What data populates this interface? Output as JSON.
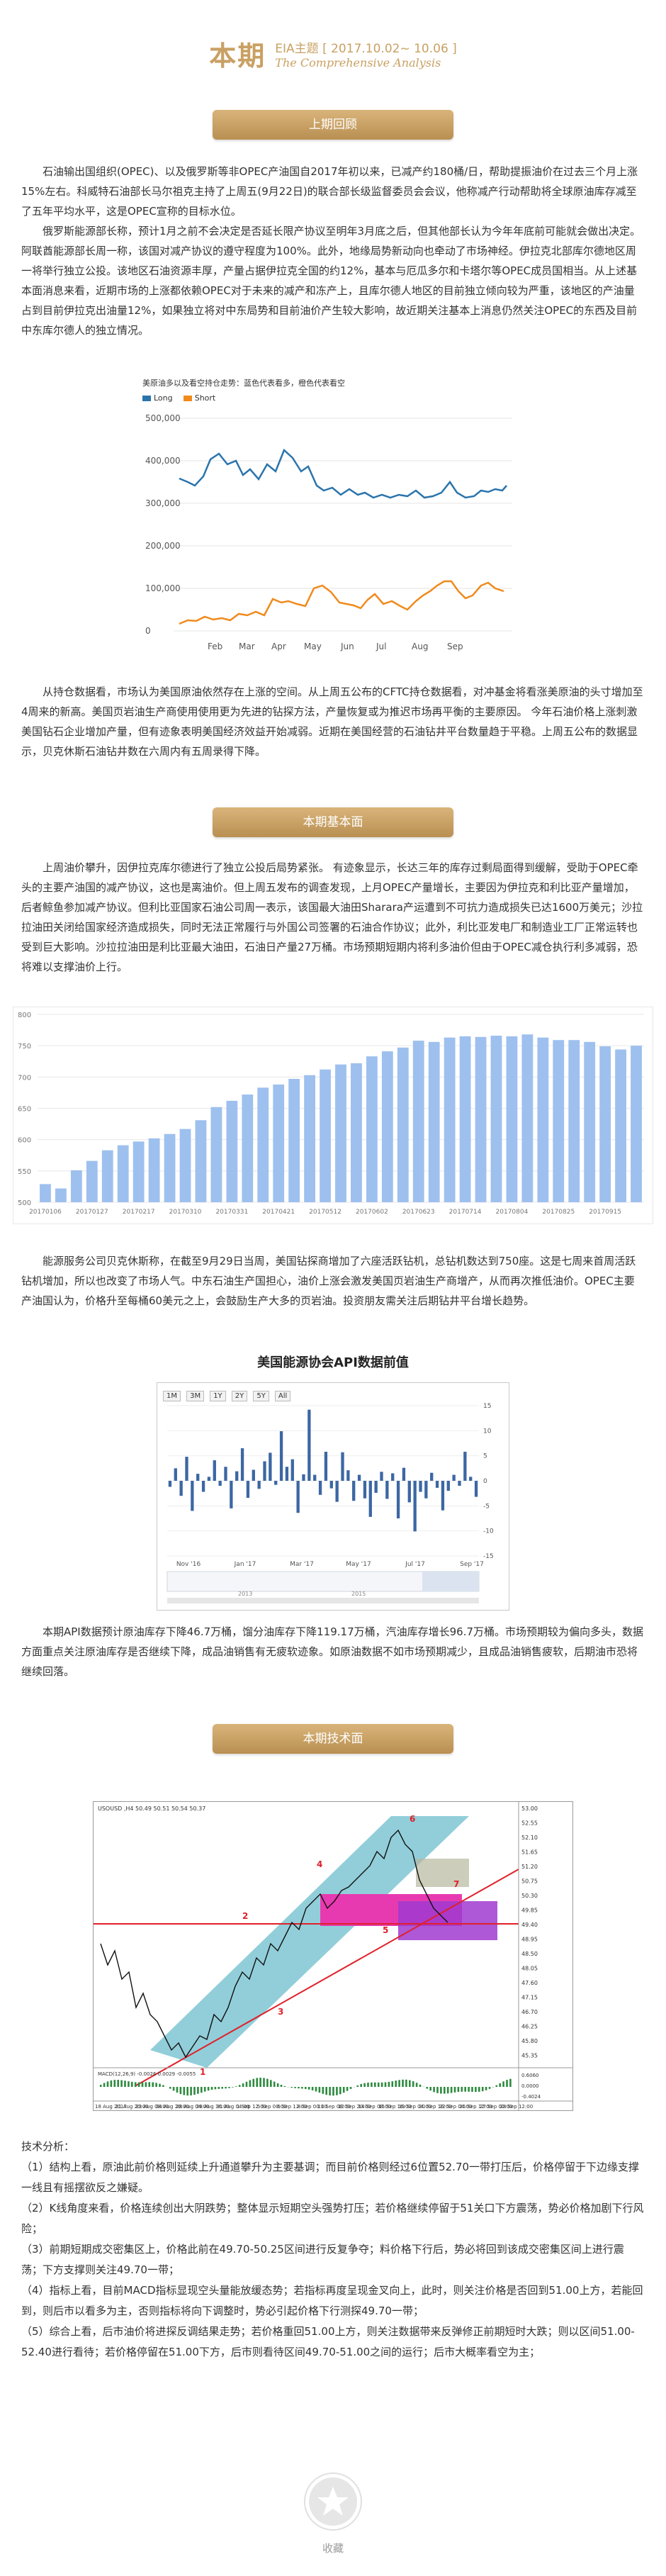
{
  "header": {
    "title": "本期",
    "subtitle_cn": "EIA主题 [ 2017.10.02~ 10.06 ]",
    "subtitle_en": "The Comprehensive Analysis"
  },
  "section1": {
    "banner": "上期回顾",
    "paragraphs": [
      "石油输出国组织(OPEC)、以及俄罗斯等非OPEC产油国自2017年初以来，已减产约180桶/日，帮助提振油价在过去三个月上涨15%左右。科威特石油部长马尔祖克主持了上周五(9月22日)的联合部长级监督委员会会议，他称减产行动帮助将全球原油库存减至了五年平均水平，这是OPEC宣称的目标水位。",
      "俄罗斯能源部长称，预计1月之前不会决定是否延长限产协议至明年3月底之后，但其他部长认为今年年底前可能就会做出决定。阿联酋能源部长周一称，该国对减产协议的遵守程度为100%。此外，地缘局势新动向也牵动了市场神经。伊拉克北部库尔德地区周一将举行独立公投。该地区石油资源丰厚，产量占据伊拉克全国的约12%，基本与厄瓜多尔和卡塔尔等OPEC成员国相当。从上述基本面消息来看，近期市场的上涨都依赖OPEC对于未来的减产和冻产上，且库尔德人地区的目前独立倾向较为严重，该地区的产油量占到目前伊拉克出油量12%，如果独立将对中东局势和目前油价产生较大影响，故近期关注基本上消息仍然关注OPEC的东西及目前中东库尔德人的独立情况。"
    ],
    "paragraph_after_chart": "从持仓数据看，市场认为美国原油依然存在上涨的空间。从上周五公布的CFTC持仓数据看，对冲基金将看涨美原油的头寸增加至4周来的新高。美国页岩油生产商使用使用更为先进的钻探方法，产量恢复或为推迟市场再平衡的主要原因。 今年石油价格上涨刺激美国钻石企业增加产量，但有迹象表明美国经济效益开始减弱。近期在美国经营的石油钻井平台数量趋于平稳。上周五公布的数据显示，贝克休斯石油钻井数在六周内有五周录得下降。"
  },
  "cftc_chart": {
    "title": "美原油多以及看空持仓走势：蓝色代表看多，橙色代表看空",
    "legend": [
      {
        "name": "Long",
        "color": "#2a74ad"
      },
      {
        "name": "Short",
        "color": "#f08a1c"
      }
    ]
  },
  "section2": {
    "banner": "本期基本面",
    "paragraph1": "上周油价攀升，因伊拉克库尔德进行了独立公投后局势紧张。 有迹象显示，长达三年的库存过剩局面得到缓解，受助于OPEC牵头的主要产油国的减产协议，这也是离油价。但上周五发布的调查发现，上月OPEC产量增长，主要因为伊拉克和利比亚产量增加，后者鲸鱼参加减产协议。但利比亚国家石油公司周一表示，该国最大油田Sharara产运遭到不可抗力造成损失已达1600万美元；沙拉拉油田关闭给国家经济造成损失，同时无法正常履行与外国公司签署的石油合作协议；此外，利比亚发电厂和制造业工厂正常运转也受到巨大影响。沙拉拉油田是利比亚最大油田，石油日产量27万桶。市场预期短期内将利多油价但由于OPEC减仓执行利多减弱，恐将难以支撑油价上行。",
    "paragraph2": "能源服务公司贝克休斯称，在截至9月29日当周，美国钻探商增加了六座活跃钻机，总钻机数达到750座。这是七周来首周活跃钻机增加，所以也改变了市场人气。中东石油生产国担心，油价上涨会激发美国页岩油生产商增产，从而再次推低油价。OPEC主要产油国认为，价格升至每桶60美元之上，会鼓励生产大多的页岩油。投资朋友需关注后期钻井平台增长趋势。",
    "api_title": "美国能源协会API数据前值",
    "paragraph3": "本期API数据预计原油库存下降46.7万桶，馏分油库存下降119.17万桶，汽油库存增长96.7万桶。市场预期较为偏向多头，数据方面重点关注原油库存是否继续下降，成品油销售有无疲软迹象。如原油数据不如市场预期减少，且成品油销售疲软，后期油市恐将继续回落。"
  },
  "rig_chart": {
    "type": "bar",
    "categories": [
      "20170106",
      "20170113",
      "20170120",
      "20170127",
      "20170203",
      "20170210",
      "20170217",
      "20170224",
      "20170303",
      "20170310",
      "20170317",
      "20170324",
      "20170331",
      "20170407",
      "20170413",
      "20170421",
      "20170428",
      "20170505",
      "20170512",
      "20170519",
      "20170526",
      "20170602",
      "20170609",
      "20170616",
      "20170623",
      "20170630",
      "20170707",
      "20170714",
      "20170721",
      "20170728",
      "20170804",
      "20170811",
      "20170818",
      "20170825",
      "20170901",
      "20170908",
      "20170915",
      "20170922",
      "20170929"
    ],
    "tick_labels": [
      "20170106",
      "20170127",
      "20170217",
      "20170310",
      "20170331",
      "20170421",
      "20170512",
      "20170602",
      "20170623",
      "20170714",
      "20170804",
      "20170825",
      "20170915"
    ],
    "values": [
      529,
      522,
      551,
      566,
      583,
      591,
      597,
      602,
      609,
      617,
      631,
      652,
      662,
      672,
      683,
      688,
      697,
      703,
      712,
      720,
      722,
      733,
      741,
      747,
      758,
      756,
      763,
      765,
      764,
      766,
      765,
      768,
      763,
      759,
      759,
      756,
      749,
      744,
      750
    ],
    "ylim": [
      500,
      800
    ],
    "yticks": [
      500,
      550,
      600,
      650,
      700,
      750,
      800
    ],
    "color": "#9ec0ee"
  },
  "api_chart": {
    "type": "bar",
    "buttons": [
      "1M",
      "3M",
      "1Y",
      "2Y",
      "5Y",
      "All"
    ],
    "x_ticks": [
      "Nov '16",
      "Jan '17",
      "Mar '17",
      "May '17",
      "Jul '17",
      "Sep '17"
    ],
    "nav_ticks": [
      "2013",
      "2015"
    ],
    "yticks": [
      15,
      10,
      5,
      0,
      -5,
      -10,
      -15
    ],
    "ylim": [
      -15,
      15
    ],
    "color": "#3c67a3",
    "values": [
      -1.2,
      2.5,
      -3.0,
      4.8,
      -6.0,
      1.4,
      -2.2,
      0.8,
      4.1,
      -1.0,
      2.8,
      -5.5,
      1.9,
      6.5,
      -3.4,
      2.2,
      -1.6,
      3.9,
      5.6,
      -0.8,
      9.9,
      2.8,
      4.3,
      -6.4,
      1.3,
      14.2,
      1.2,
      -2.8,
      5.8,
      -1.5,
      -4.2,
      5.7,
      2.1,
      -4.0,
      1.2,
      -3.5,
      -7.2,
      -2.4,
      1.8,
      -3.6,
      1.5,
      -7.5,
      2.6,
      -4.3,
      -10.1,
      -2.2,
      -3.5,
      1.6,
      -1.4,
      -5.9,
      -2.0,
      1.2,
      -1.0,
      5.8,
      0.8,
      -3.2
    ]
  },
  "section3": {
    "banner": "本期技术面",
    "techlines": [
      "技术分析：",
      "（1）结构上看，原油此前价格则延续上升通道攀升为主要基调；而目前价格则经过6位置52.70一带打压后，价格停留于下边缘支撑一线且有摇摆欲反之嫌疑。",
      "（2）K线角度来看，价格连续创出大阴跌势；整体显示短期空头强势打压；若价格继续停留于51关口下方震荡，势必价格加剧下行风险；",
      "（3）前期短期成交密集区上，价格此前在49.70-50.25区间进行反复争夺；料价格下行后，势必将回到该成交密集区间上进行震荡；下方支撑则关注49.70一带；",
      "（4）指标上看，目前MACD指标显现空头量能放缓态势；若指标再度呈现金叉向上，此时，则关注价格是否回到51.00上方，若能回到，则后市以看多为主，否则指标将向下调整时，势必引起价格下行测探49.70一带；",
      "（5）综合上看，后市油价将进探反调结果走势；若价格重回51.00上方，则关注数据带来反弹修正前期短时大跌；则以区间51.00-52.40进行看待；若价格停留在51.00下方，后市则看待区间49.70-51.00之间的运行；后市大概率看空为主；"
    ]
  },
  "tech_chart": {
    "header_text": "USOUSD ,H4  50.49 50.51 50.54 50.37",
    "numbers": [
      "1",
      "2",
      "3",
      "4",
      "5",
      "6",
      "7"
    ],
    "price_ticks": [
      "53.00",
      "52.55",
      "52.10",
      "51.65",
      "51.20",
      "50.75",
      "50.30",
      "49.85",
      "49.40",
      "48.95",
      "48.50",
      "48.05",
      "47.60",
      "47.15",
      "46.70",
      "46.25",
      "45.80",
      "45.35"
    ],
    "macd_label": "MACD(12,26,9) -0.0026 0.0029 -0.0055",
    "macd_ticks": [
      "0.6060",
      "0.0000",
      "-0.4024"
    ],
    "date_ticks": [
      "18 Aug 2017",
      "21 Aug 20:00",
      "23 Aug 08:00",
      "24 Aug 20:00",
      "28 Aug 04:00",
      "29 Aug 16:00",
      "31 Aug 04:00",
      "1 Sep 12:00",
      "5 Sep 00:00",
      "6 Sep 12:00",
      "8 Sep 00:00",
      "11 Sep 08:00",
      "12 Sep 20:00",
      "14 Sep 08:00",
      "15 Sep 16:00",
      "19 Sep 04:00",
      "20 Sep 16:00",
      "22 Sep 04:00",
      "25 Sep 12:00",
      "27 Sep 00:00",
      "28 Sep 12:00"
    ]
  },
  "footer": {
    "favorite_label": "收藏"
  }
}
